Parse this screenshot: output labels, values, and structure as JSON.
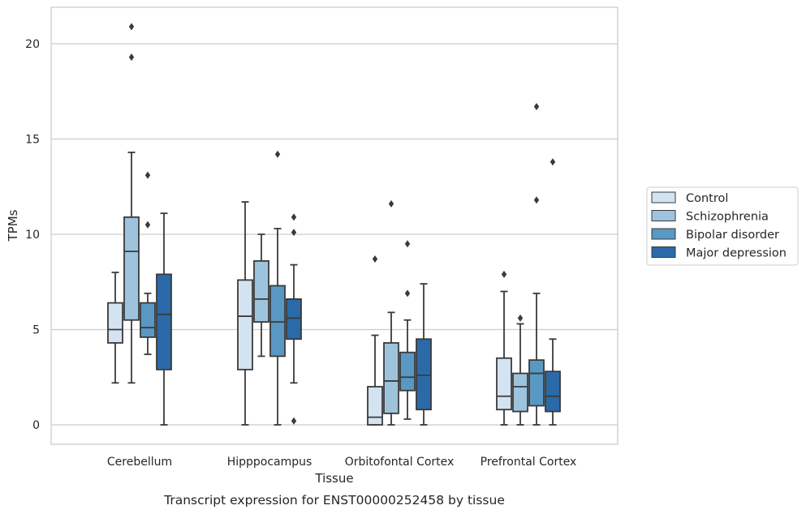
{
  "chart_data": {
    "type": "box",
    "title": "Transcript expression for ENST00000252458 by tissue",
    "xlabel": "Tissue",
    "ylabel": "TPMs",
    "ylim": [
      -1,
      22
    ],
    "yticks": [
      0,
      5,
      10,
      15,
      20
    ],
    "grid": true,
    "legend_position": "right",
    "categories": [
      "Cerebellum",
      "Hipppocampus",
      "Orbitofontal Cortex",
      "Prefrontal Cortex"
    ],
    "series": [
      {
        "name": "Control",
        "color": "#d4e3f2",
        "boxes": [
          {
            "whislo": 2.2,
            "q1": 4.3,
            "med": 5.0,
            "q3": 6.4,
            "whishi": 8.0,
            "fliers": []
          },
          {
            "whislo": 0.0,
            "q1": 2.9,
            "med": 5.7,
            "q3": 7.6,
            "whishi": 11.7,
            "fliers": []
          },
          {
            "whislo": 0.0,
            "q1": 0.0,
            "med": 0.4,
            "q3": 2.0,
            "whishi": 4.7,
            "fliers": [
              8.7
            ]
          },
          {
            "whislo": 0.0,
            "q1": 0.8,
            "med": 1.5,
            "q3": 3.5,
            "whishi": 7.0,
            "fliers": [
              7.9
            ]
          }
        ]
      },
      {
        "name": "Schizophrenia",
        "color": "#9ec4dd",
        "boxes": [
          {
            "whislo": 2.2,
            "q1": 5.5,
            "med": 9.1,
            "q3": 10.9,
            "whishi": 14.3,
            "fliers": [
              19.3,
              20.9
            ]
          },
          {
            "whislo": 3.6,
            "q1": 5.4,
            "med": 6.6,
            "q3": 8.6,
            "whishi": 10.0,
            "fliers": []
          },
          {
            "whislo": 0.0,
            "q1": 0.6,
            "med": 2.3,
            "q3": 4.3,
            "whishi": 5.9,
            "fliers": [
              11.6
            ]
          },
          {
            "whislo": 0.0,
            "q1": 0.7,
            "med": 2.0,
            "q3": 2.7,
            "whishi": 5.3,
            "fliers": [
              5.6
            ]
          }
        ]
      },
      {
        "name": "Bipolar disorder",
        "color": "#5a98c4",
        "boxes": [
          {
            "whislo": 3.7,
            "q1": 4.6,
            "med": 5.1,
            "q3": 6.4,
            "whishi": 6.9,
            "fliers": [
              10.5,
              13.1
            ]
          },
          {
            "whislo": 0.0,
            "q1": 3.6,
            "med": 5.4,
            "q3": 7.3,
            "whishi": 10.3,
            "fliers": [
              14.2
            ]
          },
          {
            "whislo": 0.3,
            "q1": 1.8,
            "med": 2.5,
            "q3": 3.8,
            "whishi": 5.5,
            "fliers": [
              6.9,
              9.5
            ]
          },
          {
            "whislo": 0.0,
            "q1": 1.0,
            "med": 2.7,
            "q3": 3.4,
            "whishi": 6.9,
            "fliers": [
              11.8,
              16.7
            ]
          }
        ]
      },
      {
        "name": "Major depression",
        "color": "#2b6aa8",
        "boxes": [
          {
            "whislo": 0.0,
            "q1": 2.9,
            "med": 5.8,
            "q3": 7.9,
            "whishi": 11.1,
            "fliers": []
          },
          {
            "whislo": 2.2,
            "q1": 4.5,
            "med": 5.6,
            "q3": 6.6,
            "whishi": 8.4,
            "fliers": [
              0.2,
              10.1,
              10.9
            ]
          },
          {
            "whislo": 0.0,
            "q1": 0.8,
            "med": 2.6,
            "q3": 4.5,
            "whishi": 7.4,
            "fliers": []
          },
          {
            "whislo": 0.0,
            "q1": 0.7,
            "med": 1.5,
            "q3": 2.8,
            "whishi": 4.5,
            "fliers": [
              13.8
            ]
          }
        ]
      }
    ]
  }
}
